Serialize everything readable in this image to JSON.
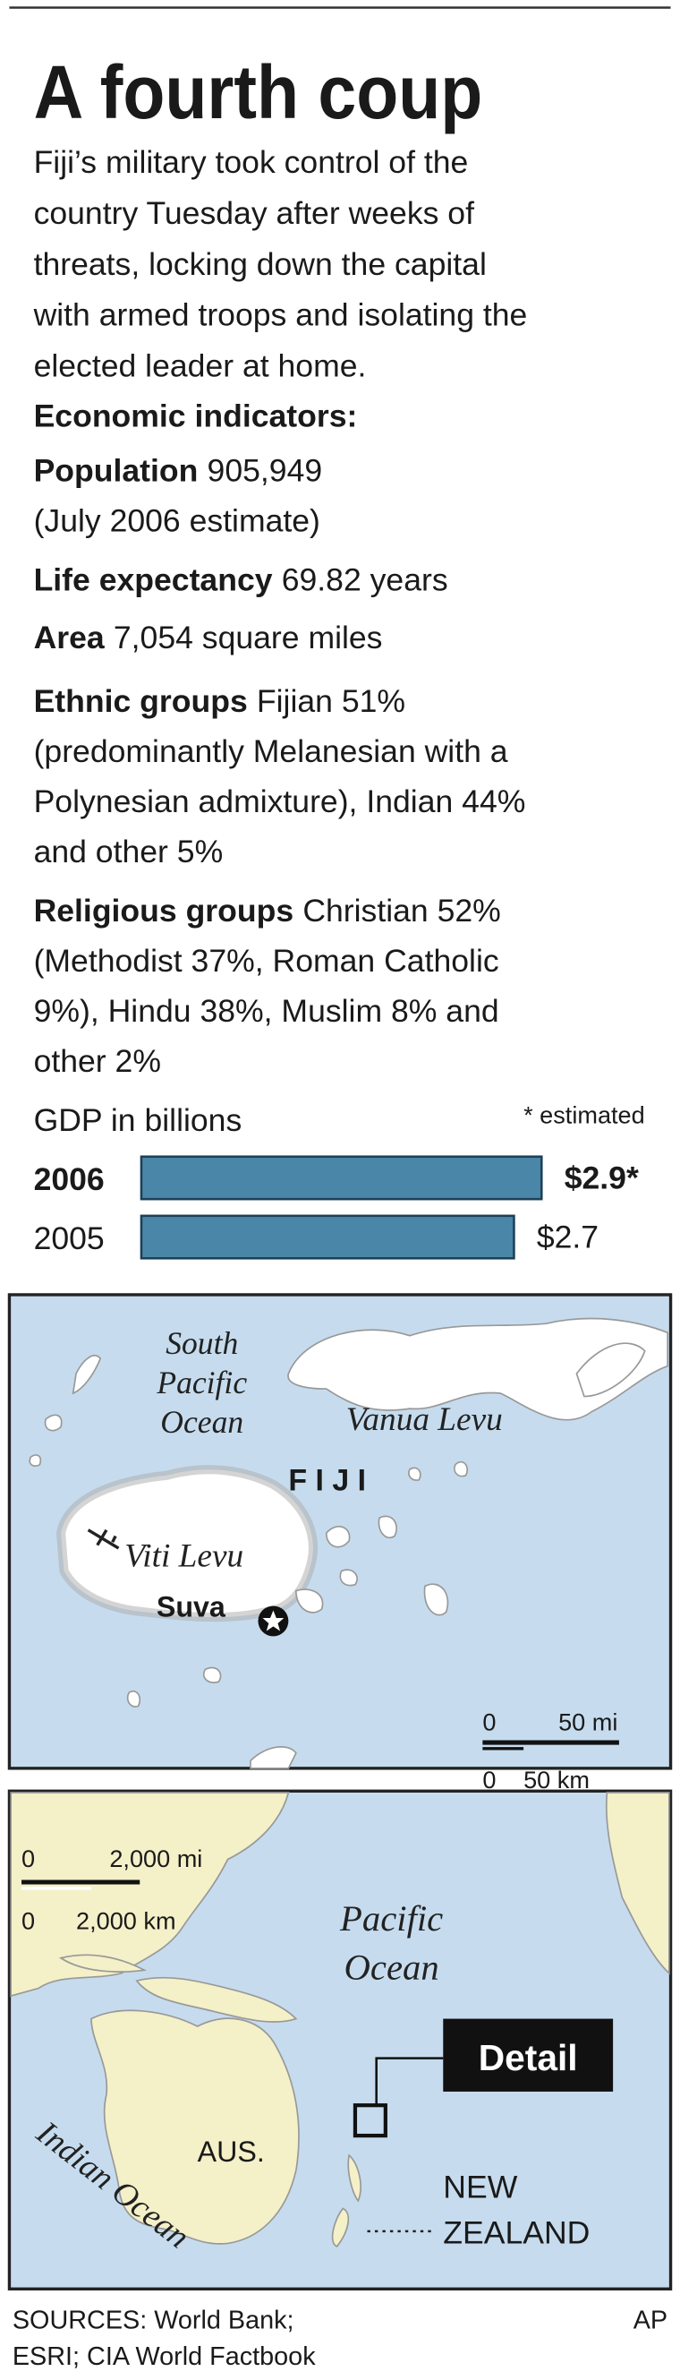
{
  "header": {
    "title": "A fourth coup"
  },
  "intro": [
    "Fiji’s military took control of the",
    "country Tuesday after weeks of",
    "threats, locking down the capital",
    "with armed troops and isolating the",
    "elected leader at home."
  ],
  "indicators": {
    "heading": "Economic indicators:",
    "items": [
      {
        "label": "Population",
        "lines": [
          "905,949",
          "(July 2006 estimate)"
        ]
      },
      {
        "label": "Life expectancy",
        "lines": [
          "69.82 years"
        ]
      },
      {
        "label": "Area",
        "lines": [
          "7,054 square miles"
        ]
      },
      {
        "label": "Ethnic groups",
        "lines": [
          "Fijian 51%",
          "(predominantly Melanesian with a",
          "Polynesian admixture), Indian 44%",
          "and other 5%"
        ]
      },
      {
        "label": "Religious groups",
        "lines": [
          "Christian 52%",
          "(Methodist 37%, Roman Catholic",
          "9%), Hindu 38%, Muslim 8% and",
          "other 2%"
        ]
      }
    ]
  },
  "chart_data": {
    "type": "bar",
    "title": "GDP in billions",
    "note": "* estimated",
    "categories": [
      "2006",
      "2005"
    ],
    "values": [
      2.9,
      2.7
    ],
    "value_labels": [
      "$2.9*",
      "$2.7"
    ],
    "color": "#4a86a8"
  },
  "map_detail": {
    "ocean": [
      "South",
      "Pacific",
      "Ocean"
    ],
    "vanua_levu": "Vanua Levu",
    "country": "F I J I",
    "viti_levu": "Viti Levu",
    "capital": "Suva",
    "scale": {
      "mi_zero": "0",
      "mi": "50 mi",
      "km_zero": "0",
      "km": "50 km"
    }
  },
  "map_locator": {
    "scale": {
      "mi_zero": "0",
      "mi": "2,000 mi",
      "km_zero": "0",
      "km": "2,000 km"
    },
    "pacific": [
      "Pacific",
      "Ocean"
    ],
    "detail": "Detail",
    "indian": "Indian Ocean",
    "australia": "AUS.",
    "new_zealand": [
      "NEW",
      "ZEALAND"
    ]
  },
  "footer": {
    "sources": [
      "SOURCES: World Bank;",
      "ESRI; CIA World Factbook"
    ],
    "credit": "AP"
  }
}
